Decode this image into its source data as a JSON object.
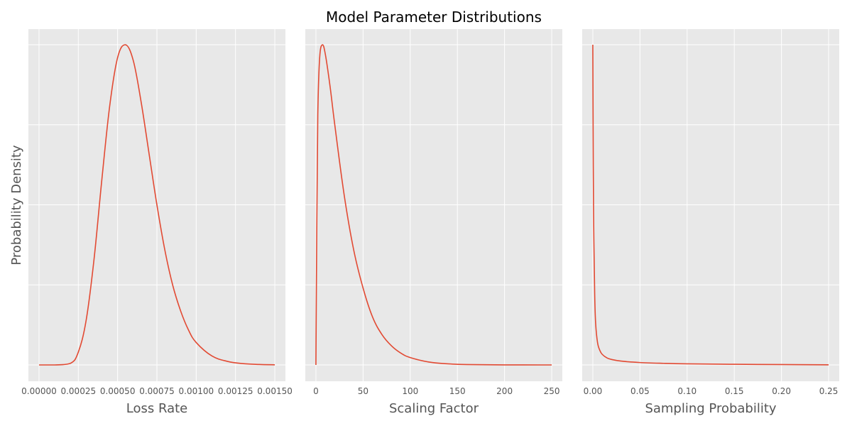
{
  "title": "Model Parameter Distributions",
  "ylabel": "Probability Density",
  "colors": {
    "panel_background": "#e8e8e8",
    "grid": "#ffffff",
    "line": "#e24a33",
    "text": "#555555"
  },
  "chart_data": [
    {
      "type": "line",
      "xlabel": "Loss Rate",
      "xlim": [
        0,
        0.0015
      ],
      "xticks": [
        0,
        0.00025,
        0.0005,
        0.00075,
        0.001,
        0.00125,
        0.0015
      ],
      "xtick_labels": [
        "0.00000",
        "0.00025",
        "0.00050",
        "0.00075",
        "0.00100",
        "0.00125",
        "0.00150"
      ],
      "grid": true,
      "series": [
        {
          "distribution": "lognormal",
          "x": [
            0,
            0.0001,
            0.0002,
            0.00025,
            0.0003,
            0.00035,
            0.0004,
            0.00045,
            0.0005,
            0.00055,
            0.0006,
            0.00065,
            0.0007,
            0.00075,
            0.0008,
            0.00085,
            0.0009,
            0.00095,
            0.001,
            0.0011,
            0.0012,
            0.0013,
            0.0014,
            0.0015
          ],
          "y": [
            0,
            0.0,
            0.005,
            0.04,
            0.14,
            0.33,
            0.58,
            0.81,
            0.96,
            1.0,
            0.95,
            0.82,
            0.66,
            0.5,
            0.36,
            0.25,
            0.17,
            0.11,
            0.07,
            0.028,
            0.011,
            0.004,
            0.0015,
            0.0005
          ]
        }
      ]
    },
    {
      "type": "line",
      "xlabel": "Scaling Factor",
      "xlim": [
        0,
        250
      ],
      "xticks": [
        0,
        50,
        100,
        150,
        200,
        250
      ],
      "xtick_labels": [
        "0",
        "50",
        "100",
        "150",
        "200",
        "250"
      ],
      "grid": true,
      "series": [
        {
          "distribution": "right-skewed",
          "x": [
            0,
            1,
            2,
            4,
            7,
            10,
            15,
            20,
            30,
            40,
            50,
            60,
            70,
            80,
            90,
            100,
            120,
            140,
            160,
            200,
            250
          ],
          "y": [
            0,
            0.45,
            0.78,
            0.96,
            1.0,
            0.97,
            0.87,
            0.75,
            0.53,
            0.36,
            0.24,
            0.15,
            0.095,
            0.06,
            0.037,
            0.023,
            0.009,
            0.0035,
            0.0013,
            0.0002,
            0.0
          ]
        }
      ]
    },
    {
      "type": "line",
      "xlabel": "Sampling Probability",
      "xlim": [
        0,
        0.25
      ],
      "xticks": [
        0,
        0.05,
        0.1,
        0.15,
        0.2,
        0.25
      ],
      "xtick_labels": [
        "0.00",
        "0.05",
        "0.10",
        "0.15",
        "0.20",
        "0.25"
      ],
      "grid": true,
      "series": [
        {
          "distribution": "sharply decaying",
          "x": [
            0,
            0.0005,
            0.001,
            0.002,
            0.003,
            0.005,
            0.0075,
            0.01,
            0.015,
            0.02,
            0.03,
            0.05,
            0.075,
            0.1,
            0.15,
            0.2,
            0.25
          ],
          "y": [
            1.0,
            0.62,
            0.42,
            0.22,
            0.13,
            0.07,
            0.045,
            0.033,
            0.022,
            0.017,
            0.012,
            0.0075,
            0.005,
            0.0035,
            0.002,
            0.0012,
            0.0005
          ]
        }
      ]
    }
  ]
}
